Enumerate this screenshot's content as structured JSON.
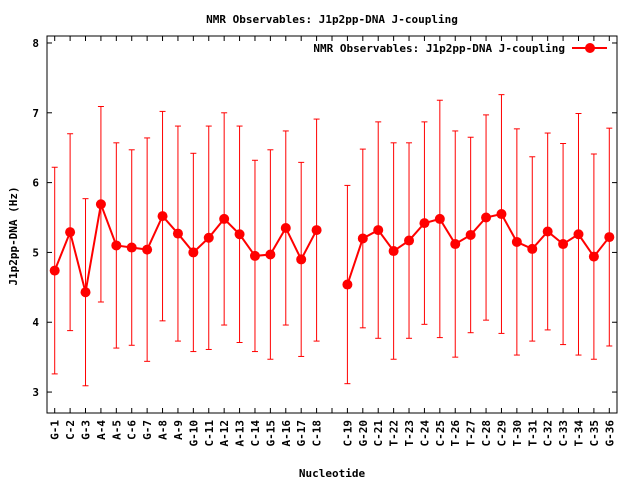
{
  "chart_data": {
    "type": "line",
    "title": "NMR Observables: J1p2pp-DNA J-coupling",
    "xlabel": "Nucleotide",
    "ylabel": "J1p2pp-DNA (Hz)",
    "ylim": [
      2.7,
      8.1
    ],
    "yticks": [
      3,
      4,
      5,
      6,
      7,
      8
    ],
    "grid": false,
    "legend_position": "top-right",
    "series_color": "#ff0000",
    "series": [
      {
        "name": "NMR Observables: J1p2pp-DNA J-coupling",
        "points": [
          {
            "x": "G-1",
            "y": 4.74,
            "low": 3.26,
            "high": 6.22
          },
          {
            "x": "C-2",
            "y": 5.29,
            "low": 3.88,
            "high": 6.7
          },
          {
            "x": "G-3",
            "y": 4.43,
            "low": 3.09,
            "high": 5.77
          },
          {
            "x": "A-4",
            "y": 5.69,
            "low": 4.29,
            "high": 7.09
          },
          {
            "x": "A-5",
            "y": 5.1,
            "low": 3.63,
            "high": 6.57
          },
          {
            "x": "C-6",
            "y": 5.07,
            "low": 3.67,
            "high": 6.47
          },
          {
            "x": "G-7",
            "y": 5.04,
            "low": 3.44,
            "high": 6.64
          },
          {
            "x": "A-8",
            "y": 5.52,
            "low": 4.02,
            "high": 7.02
          },
          {
            "x": "A-9",
            "y": 5.27,
            "low": 3.73,
            "high": 6.81
          },
          {
            "x": "G-10",
            "y": 5.0,
            "low": 3.58,
            "high": 6.42
          },
          {
            "x": "C-11",
            "y": 5.21,
            "low": 3.61,
            "high": 6.81
          },
          {
            "x": "A-12",
            "y": 5.48,
            "low": 3.96,
            "high": 7.0
          },
          {
            "x": "A-13",
            "y": 5.26,
            "low": 3.71,
            "high": 6.81
          },
          {
            "x": "C-14",
            "y": 4.95,
            "low": 3.58,
            "high": 6.32
          },
          {
            "x": "G-15",
            "y": 4.97,
            "low": 3.47,
            "high": 6.47
          },
          {
            "x": "A-16",
            "y": 5.35,
            "low": 3.96,
            "high": 6.74
          },
          {
            "x": "G-17",
            "y": 4.9,
            "low": 3.51,
            "high": 6.29
          },
          {
            "x": "C-18",
            "y": 5.32,
            "low": 3.73,
            "high": 6.91
          },
          {
            "x": "",
            "y": null,
            "low": null,
            "high": null
          },
          {
            "x": "C-19",
            "y": 4.54,
            "low": 3.12,
            "high": 5.96
          },
          {
            "x": "G-20",
            "y": 5.2,
            "low": 3.92,
            "high": 6.48
          },
          {
            "x": "C-21",
            "y": 5.32,
            "low": 3.77,
            "high": 6.87
          },
          {
            "x": "T-22",
            "y": 5.02,
            "low": 3.47,
            "high": 6.57
          },
          {
            "x": "T-23",
            "y": 5.17,
            "low": 3.77,
            "high": 6.57
          },
          {
            "x": "C-24",
            "y": 5.42,
            "low": 3.97,
            "high": 6.87
          },
          {
            "x": "C-25",
            "y": 5.48,
            "low": 3.78,
            "high": 7.18
          },
          {
            "x": "T-26",
            "y": 5.12,
            "low": 3.5,
            "high": 6.74
          },
          {
            "x": "T-27",
            "y": 5.25,
            "low": 3.85,
            "high": 6.65
          },
          {
            "x": "C-28",
            "y": 5.5,
            "low": 4.03,
            "high": 6.97
          },
          {
            "x": "C-29",
            "y": 5.55,
            "low": 3.84,
            "high": 7.26
          },
          {
            "x": "T-30",
            "y": 5.15,
            "low": 3.53,
            "high": 6.77
          },
          {
            "x": "T-31",
            "y": 5.05,
            "low": 3.73,
            "high": 6.37
          },
          {
            "x": "C-32",
            "y": 5.3,
            "low": 3.89,
            "high": 6.71
          },
          {
            "x": "C-33",
            "y": 5.12,
            "low": 3.68,
            "high": 6.56
          },
          {
            "x": "T-34",
            "y": 5.26,
            "low": 3.53,
            "high": 6.99
          },
          {
            "x": "C-35",
            "y": 4.94,
            "low": 3.47,
            "high": 6.41
          },
          {
            "x": "G-36",
            "y": 5.22,
            "low": 3.66,
            "high": 6.78
          }
        ]
      }
    ]
  }
}
